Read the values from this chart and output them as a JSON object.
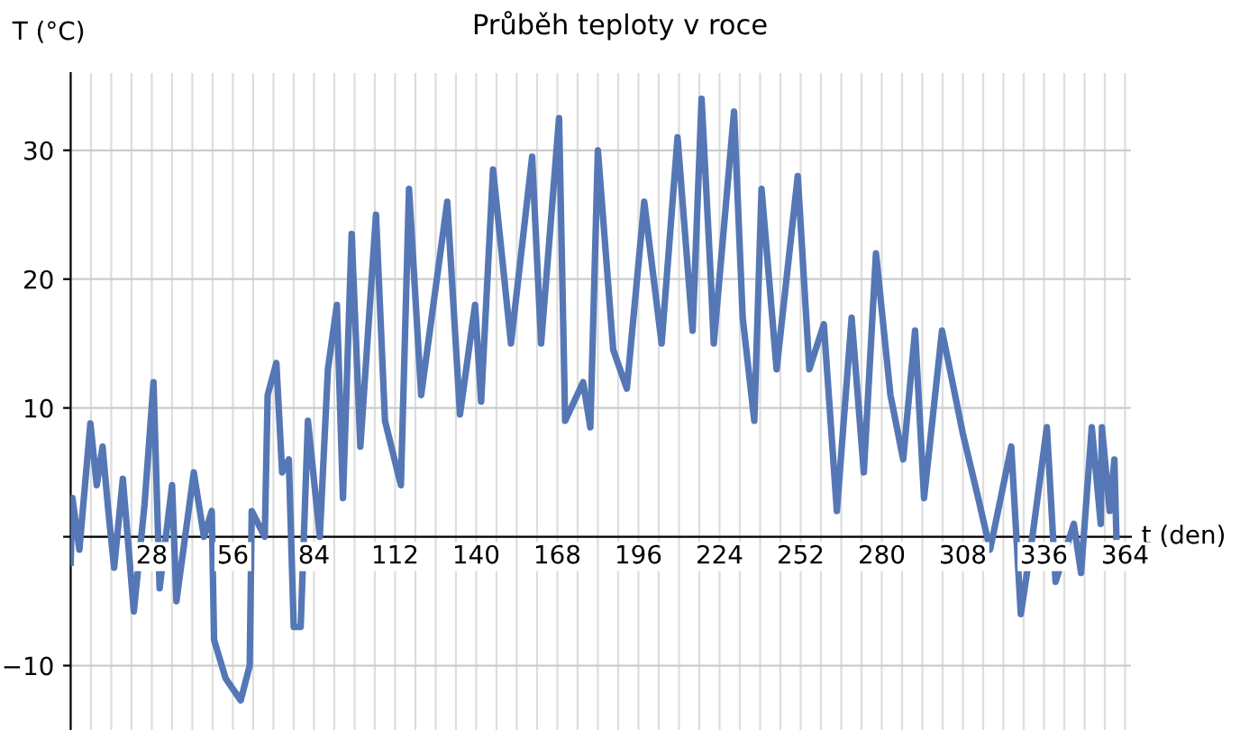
{
  "chart_data": {
    "type": "line",
    "title": "Průběh teploty v roce",
    "xlabel": "t (den)",
    "ylabel": "T (°C)",
    "series": [
      {
        "color": "#5577b5",
        "x": [
          0,
          0.6,
          3,
          6.8,
          9,
          11,
          13,
          15,
          18,
          21.8,
          25.5,
          28.6,
          30.7,
          35,
          36.5,
          42.5,
          46,
          48.7,
          49.5,
          53.5,
          58.7,
          61.8,
          62.5,
          67,
          68,
          71,
          73,
          75.3,
          77,
          79.4,
          81.9,
          86,
          88.8,
          91.9,
          94,
          97,
          100,
          105.4,
          108.5,
          114,
          116.8,
          121,
          130,
          134.4,
          139.6,
          141.7,
          145.8,
          152,
          159.3,
          162.4,
          168.6,
          170.7,
          176.9,
          179.4,
          182,
          187.3,
          192,
          198,
          204,
          209.5,
          214.7,
          217.8,
          221,
          222,
          229,
          232,
          236,
          238.5,
          243.7,
          251,
          255,
          260,
          264.5,
          269.6,
          273.8,
          278,
          283,
          287.4,
          291.5,
          294.6,
          300.8,
          308,
          313.3,
          317.4,
          324.7,
          328,
          332,
          337,
          340,
          346.3,
          348.8,
          352.5,
          355.6,
          356,
          358.7,
          360.3,
          361
        ],
        "values": [
          -2,
          3,
          -1,
          8.8,
          4,
          7,
          2,
          -2.4,
          4.5,
          -5.8,
          2.5,
          12,
          -4,
          4,
          -5,
          5,
          0,
          2,
          -8,
          -11,
          -12.7,
          -10,
          2,
          0,
          11,
          13.5,
          5,
          6,
          -7,
          -7,
          9,
          0,
          13,
          18,
          3,
          23.5,
          7,
          25,
          9,
          4,
          27,
          11,
          26,
          9.5,
          18,
          10.5,
          28.5,
          15,
          29.5,
          15,
          32.5,
          9,
          12,
          8.5,
          30,
          14.5,
          11.5,
          26,
          15,
          31,
          16,
          34,
          20,
          15,
          33,
          17,
          9,
          27,
          13,
          28,
          13,
          16.5,
          2,
          17,
          5,
          22,
          11,
          6,
          16,
          3,
          16,
          8,
          3,
          -1,
          7,
          -6,
          0,
          8.5,
          -3.5,
          1,
          -2.8,
          8.5,
          1,
          8.5,
          2,
          6,
          0
        ]
      }
    ],
    "xlim": [
      0,
      366
    ],
    "xticks": [
      {
        "value": 7,
        "label": null
      },
      {
        "value": 14,
        "label": null
      },
      {
        "value": 21,
        "label": null
      },
      {
        "value": 28,
        "label": "28"
      },
      {
        "value": 35,
        "label": null
      },
      {
        "value": 42,
        "label": null
      },
      {
        "value": 49,
        "label": null
      },
      {
        "value": 56,
        "label": "56"
      },
      {
        "value": 63,
        "label": null
      },
      {
        "value": 70,
        "label": null
      },
      {
        "value": 77,
        "label": null
      },
      {
        "value": 84,
        "label": "84"
      },
      {
        "value": 91,
        "label": null
      },
      {
        "value": 98,
        "label": null
      },
      {
        "value": 105,
        "label": null
      },
      {
        "value": 112,
        "label": "112"
      },
      {
        "value": 119,
        "label": null
      },
      {
        "value": 126,
        "label": null
      },
      {
        "value": 133,
        "label": null
      },
      {
        "value": 140,
        "label": "140"
      },
      {
        "value": 147,
        "label": null
      },
      {
        "value": 154,
        "label": null
      },
      {
        "value": 161,
        "label": null
      },
      {
        "value": 168,
        "label": "168"
      },
      {
        "value": 175,
        "label": null
      },
      {
        "value": 182,
        "label": null
      },
      {
        "value": 189,
        "label": null
      },
      {
        "value": 196,
        "label": "196"
      },
      {
        "value": 203,
        "label": null
      },
      {
        "value": 210,
        "label": null
      },
      {
        "value": 217,
        "label": null
      },
      {
        "value": 224,
        "label": "224"
      },
      {
        "value": 231,
        "label": null
      },
      {
        "value": 238,
        "label": null
      },
      {
        "value": 245,
        "label": null
      },
      {
        "value": 252,
        "label": "252"
      },
      {
        "value": 259,
        "label": null
      },
      {
        "value": 266,
        "label": null
      },
      {
        "value": 273,
        "label": null
      },
      {
        "value": 280,
        "label": "280"
      },
      {
        "value": 287,
        "label": null
      },
      {
        "value": 294,
        "label": null
      },
      {
        "value": 301,
        "label": null
      },
      {
        "value": 308,
        "label": "308"
      },
      {
        "value": 315,
        "label": null
      },
      {
        "value": 322,
        "label": null
      },
      {
        "value": 329,
        "label": null
      },
      {
        "value": 336,
        "label": "336"
      },
      {
        "value": 343,
        "label": null
      },
      {
        "value": 350,
        "label": null
      },
      {
        "value": 357,
        "label": null
      },
      {
        "value": 364,
        "label": "364"
      }
    ],
    "ylim": [
      -15,
      36
    ],
    "yticks": [
      -10,
      {
        "value": 0,
        "label": null
      },
      10,
      20,
      30
    ],
    "grid": true
  }
}
